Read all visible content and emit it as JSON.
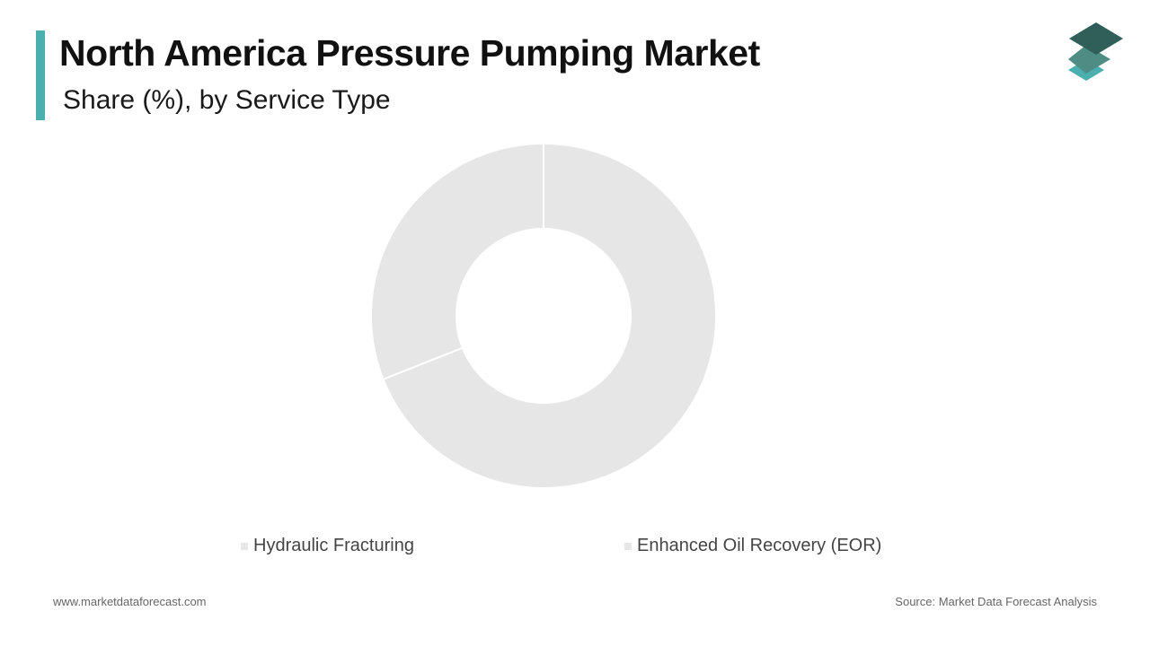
{
  "header": {
    "title": "North America Pressure Pumping Market",
    "subtitle": "Share (%), by Service Type"
  },
  "colors": {
    "accent": "#4BAFAF",
    "slice": "#E6E6E6",
    "slice_separator": "#FFFFFF",
    "legend_swatch": "#E6E6E6",
    "logo_dark": "#2F5F58",
    "logo_mid": "#4E8C84",
    "logo_light": "#4BAFAF"
  },
  "logo": {
    "icon": "stacked-layers-icon"
  },
  "chart_data": {
    "type": "pie",
    "donut": true,
    "title": "",
    "categories": [
      "Hydraulic Fracturing",
      "Enhanced Oil Recovery (EOR)"
    ],
    "values": [
      69,
      31
    ],
    "unit": "%",
    "legend_placement": "bottom"
  },
  "legend": {
    "items": [
      {
        "label": "Hydraulic Fracturing"
      },
      {
        "label": "Enhanced Oil Recovery (EOR)"
      }
    ]
  },
  "footer": {
    "website": "www.marketdataforecast.com",
    "source": "Source: Market Data Forecast Analysis"
  }
}
